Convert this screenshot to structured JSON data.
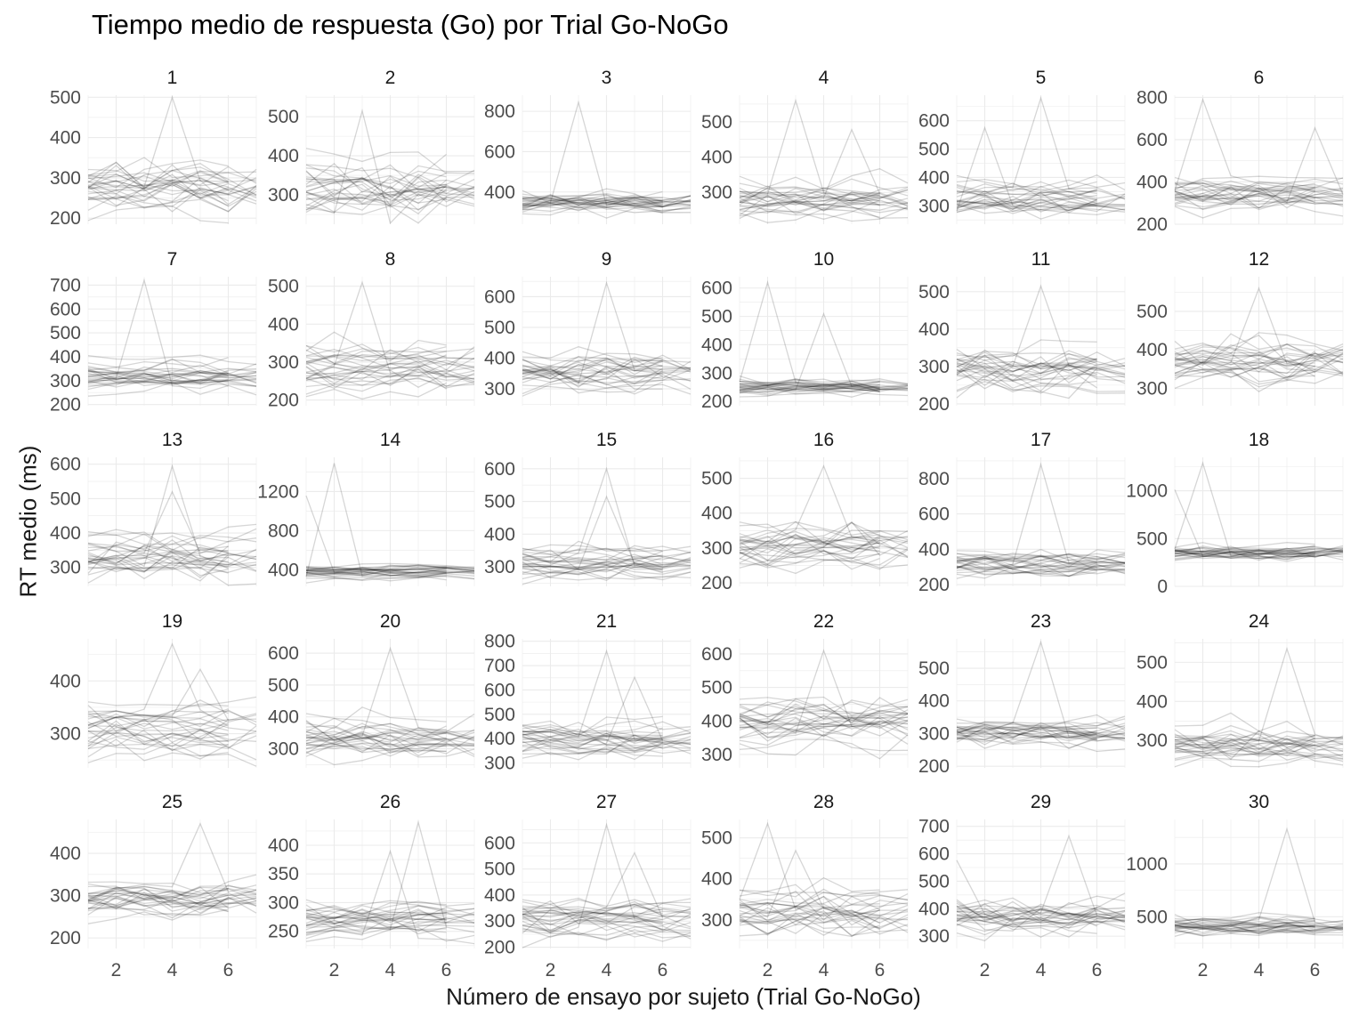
{
  "chart_data": {
    "type": "line",
    "title": "Tiempo medio de respuesta (Go) por Trial Go-NoGo",
    "xlabel": "Número de ensayo por sujeto (Trial Go-NoGo)",
    "ylabel": "RT medio (ms)",
    "xlim": [
      1,
      7
    ],
    "x_ticks": [
      2,
      4,
      6
    ],
    "grid": true,
    "line_color": "#000000",
    "panels": [
      {
        "label": "1",
        "ylim": [
          185,
          505
        ],
        "y_ticks": [
          200,
          300,
          400,
          500
        ],
        "center": 285,
        "spread": 55,
        "peak": 500
      },
      {
        "label": "2",
        "ylim": [
          225,
          555
        ],
        "y_ticks": [
          300,
          400,
          500
        ],
        "center": 315,
        "spread": 60,
        "peak": 515
      },
      {
        "label": "3",
        "ylim": [
          240,
          880
        ],
        "y_ticks": [
          400,
          600,
          800
        ],
        "center": 350,
        "spread": 45,
        "peak": 845
      },
      {
        "label": "4",
        "ylim": [
          210,
          575
        ],
        "y_ticks": [
          300,
          400,
          500
        ],
        "center": 285,
        "spread": 45,
        "peak": 560
      },
      {
        "label": "5",
        "ylim": [
          235,
          690
        ],
        "y_ticks": [
          300,
          400,
          500,
          600
        ],
        "center": 330,
        "spread": 45,
        "peak": 680
      },
      {
        "label": "6",
        "ylim": [
          200,
          810
        ],
        "y_ticks": [
          200,
          400,
          600,
          800
        ],
        "center": 340,
        "spread": 65,
        "peak": 790
      },
      {
        "label": "7",
        "ylim": [
          195,
          735
        ],
        "y_ticks": [
          200,
          300,
          400,
          500,
          600,
          700
        ],
        "center": 320,
        "spread": 45,
        "peak": 720
      },
      {
        "label": "8",
        "ylim": [
          185,
          525
        ],
        "y_ticks": [
          200,
          300,
          400,
          500
        ],
        "center": 285,
        "spread": 50,
        "peak": 510
      },
      {
        "label": "9",
        "ylim": [
          245,
          665
        ],
        "y_ticks": [
          300,
          400,
          500,
          600
        ],
        "center": 355,
        "spread": 50,
        "peak": 645
      },
      {
        "label": "10",
        "ylim": [
          185,
          640
        ],
        "y_ticks": [
          200,
          300,
          400,
          500,
          600
        ],
        "center": 250,
        "spread": 25,
        "peak": 620
      },
      {
        "label": "11",
        "ylim": [
          195,
          540
        ],
        "y_ticks": [
          200,
          300,
          400,
          500
        ],
        "center": 300,
        "spread": 50,
        "peak": 515
      },
      {
        "label": "12",
        "ylim": [
          255,
          590
        ],
        "y_ticks": [
          300,
          400,
          500
        ],
        "center": 370,
        "spread": 55,
        "peak": 560
      },
      {
        "label": "13",
        "ylim": [
          245,
          620
        ],
        "y_ticks": [
          300,
          400,
          500,
          600
        ],
        "center": 345,
        "spread": 55,
        "peak": 595
      },
      {
        "label": "14",
        "ylim": [
          230,
          1550
        ],
        "y_ticks": [
          400,
          800,
          1200
        ],
        "center": 380,
        "spread": 55,
        "peak": 1490
      },
      {
        "label": "15",
        "ylim": [
          240,
          635
        ],
        "y_ticks": [
          300,
          400,
          500,
          600
        ],
        "center": 315,
        "spread": 40,
        "peak": 600
      },
      {
        "label": "16",
        "ylim": [
          190,
          560
        ],
        "y_ticks": [
          200,
          300,
          400,
          500
        ],
        "center": 310,
        "spread": 50,
        "peak": 535
      },
      {
        "label": "17",
        "ylim": [
          190,
          920
        ],
        "y_ticks": [
          200,
          400,
          600,
          800
        ],
        "center": 320,
        "spread": 55,
        "peak": 880
      },
      {
        "label": "18",
        "ylim": [
          0,
          1350
        ],
        "y_ticks": [
          0,
          500,
          1000
        ],
        "center": 360,
        "spread": 70,
        "peak": 1290
      },
      {
        "label": "19",
        "ylim": [
          235,
          480
        ],
        "y_ticks": [
          300,
          400
        ],
        "center": 310,
        "spread": 40,
        "peak": 470
      },
      {
        "label": "20",
        "ylim": [
          240,
          645
        ],
        "y_ticks": [
          300,
          400,
          500,
          600
        ],
        "center": 330,
        "spread": 50,
        "peak": 615
      },
      {
        "label": "21",
        "ylim": [
          280,
          810
        ],
        "y_ticks": [
          300,
          400,
          500,
          600,
          700,
          800
        ],
        "center": 400,
        "spread": 55,
        "peak": 760
      },
      {
        "label": "22",
        "ylim": [
          260,
          645
        ],
        "y_ticks": [
          300,
          400,
          500,
          600
        ],
        "center": 395,
        "spread": 55,
        "peak": 610
      },
      {
        "label": "23",
        "ylim": [
          195,
          590
        ],
        "y_ticks": [
          200,
          300,
          400,
          500
        ],
        "center": 295,
        "spread": 40,
        "peak": 580
      },
      {
        "label": "24",
        "ylim": [
          230,
          560
        ],
        "y_ticks": [
          300,
          400,
          500
        ],
        "center": 290,
        "spread": 40,
        "peak": 535
      },
      {
        "label": "25",
        "ylim": [
          175,
          480
        ],
        "y_ticks": [
          200,
          300,
          400
        ],
        "center": 290,
        "spread": 35,
        "peak": 470
      },
      {
        "label": "26",
        "ylim": [
          220,
          445
        ],
        "y_ticks": [
          250,
          300,
          350,
          400
        ],
        "center": 272,
        "spread": 22,
        "peak": 440
      },
      {
        "label": "27",
        "ylim": [
          195,
          690
        ],
        "y_ticks": [
          200,
          300,
          400,
          500,
          600
        ],
        "center": 310,
        "spread": 55,
        "peak": 670
      },
      {
        "label": "28",
        "ylim": [
          230,
          545
        ],
        "y_ticks": [
          300,
          400,
          500
        ],
        "center": 315,
        "spread": 45,
        "peak": 535
      },
      {
        "label": "29",
        "ylim": [
          255,
          725
        ],
        "y_ticks": [
          300,
          400,
          500,
          600,
          700
        ],
        "center": 370,
        "spread": 55,
        "peak": 665
      },
      {
        "label": "30",
        "ylim": [
          200,
          1420
        ],
        "y_ticks": [
          500,
          1000
        ],
        "center": 420,
        "spread": 70,
        "peak": 1330
      }
    ]
  }
}
